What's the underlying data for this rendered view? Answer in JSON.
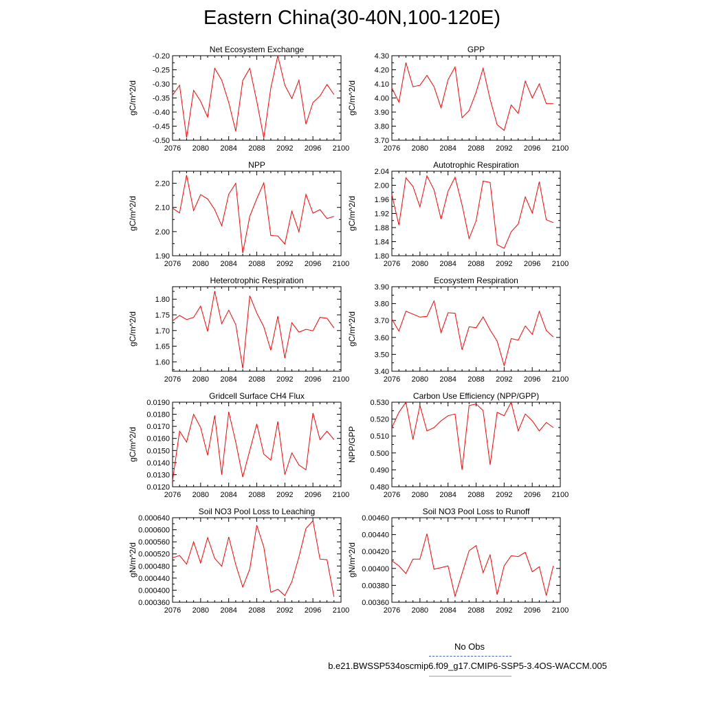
{
  "title": "Eastern China(30-40N,100-120E)",
  "legend": {
    "obs_label": "No Obs",
    "model_label": "b.e21.BWSSP534oscmip6.f09_g17.CMIP6-SSP5-3.4OS-WACCM.005",
    "obs_color": "#4a5ec9",
    "model_color": "#f27b7b"
  },
  "chart_data": [
    {
      "type": "line",
      "title": "Net Ecosystem Exchange",
      "ylabel": "gC/m^2/d",
      "xlim": [
        2076,
        2100
      ],
      "ylim": [
        -0.5,
        -0.2
      ],
      "xticks": [
        "2076",
        "2080",
        "2084",
        "2088",
        "2092",
        "2096",
        "2100"
      ],
      "yticks": [
        "-0.50",
        "-0.45",
        "-0.40",
        "-0.35",
        "-0.30",
        "-0.25",
        "-0.20"
      ],
      "line_color": "#ff0000",
      "x": [
        2076,
        2077,
        2078,
        2079,
        2080,
        2081,
        2082,
        2083,
        2084,
        2085,
        2086,
        2087,
        2088,
        2089,
        2090,
        2091,
        2092,
        2093,
        2094,
        2095,
        2096,
        2097,
        2098,
        2099
      ],
      "values": [
        -0.34,
        -0.305,
        -0.491,
        -0.323,
        -0.362,
        -0.418,
        -0.245,
        -0.287,
        -0.366,
        -0.468,
        -0.288,
        -0.245,
        -0.362,
        -0.492,
        -0.315,
        -0.2,
        -0.305,
        -0.352,
        -0.287,
        -0.443,
        -0.366,
        -0.343,
        -0.302,
        -0.338
      ]
    },
    {
      "type": "line",
      "title": "GPP",
      "ylabel": "gC/m^2/d",
      "xlim": [
        2076,
        2100
      ],
      "ylim": [
        3.7,
        4.3
      ],
      "xticks": [
        "2076",
        "2080",
        "2084",
        "2088",
        "2092",
        "2096",
        "2100"
      ],
      "yticks": [
        "3.70",
        "3.80",
        "3.90",
        "4.00",
        "4.10",
        "4.20",
        "4.30"
      ],
      "line_color": "#ff0000",
      "x": [
        2076,
        2077,
        2078,
        2079,
        2080,
        2081,
        2082,
        2083,
        2084,
        2085,
        2086,
        2087,
        2088,
        2089,
        2090,
        2091,
        2092,
        2093,
        2094,
        2095,
        2096,
        2097,
        2098,
        2099
      ],
      "values": [
        4.07,
        3.97,
        4.25,
        4.08,
        4.09,
        4.16,
        4.08,
        3.93,
        4.13,
        4.22,
        3.86,
        3.91,
        4.04,
        4.21,
        3.99,
        3.81,
        3.77,
        3.95,
        3.89,
        4.12,
        4.0,
        4.1,
        3.96,
        3.96
      ]
    },
    {
      "type": "line",
      "title": "NPP",
      "ylabel": "gC/m^2/d",
      "xlim": [
        2076,
        2100
      ],
      "ylim": [
        1.9,
        2.25
      ],
      "xticks": [
        "2076",
        "2080",
        "2084",
        "2088",
        "2092",
        "2096",
        "2100"
      ],
      "yticks": [
        "1.90",
        "2.00",
        "2.10",
        "2.20"
      ],
      "ytick_values": [
        1.9,
        2.0,
        2.1,
        2.2
      ],
      "line_color": "#ff0000",
      "x": [
        2076,
        2077,
        2078,
        2079,
        2080,
        2081,
        2082,
        2083,
        2084,
        2085,
        2086,
        2087,
        2088,
        2089,
        2090,
        2091,
        2092,
        2093,
        2094,
        2095,
        2096,
        2097,
        2098,
        2099
      ],
      "values": [
        2.097,
        2.077,
        2.234,
        2.087,
        2.153,
        2.135,
        2.091,
        2.024,
        2.155,
        2.2,
        1.911,
        2.063,
        2.136,
        2.202,
        1.984,
        1.982,
        1.948,
        2.084,
        1.999,
        2.154,
        2.076,
        2.091,
        2.054,
        2.063
      ]
    },
    {
      "type": "line",
      "title": "Autotrophic Respiration",
      "ylabel": "gC/m^2/d",
      "xlim": [
        2076,
        2100
      ],
      "ylim": [
        1.8,
        2.04
      ],
      "xticks": [
        "2076",
        "2080",
        "2084",
        "2088",
        "2092",
        "2096",
        "2100"
      ],
      "yticks": [
        "1.80",
        "1.84",
        "1.88",
        "1.92",
        "1.96",
        "2.00",
        "2.04"
      ],
      "line_color": "#ff0000",
      "x": [
        2076,
        2077,
        2078,
        2079,
        2080,
        2081,
        2082,
        2083,
        2084,
        2085,
        2086,
        2087,
        2088,
        2089,
        2090,
        2091,
        2092,
        2093,
        2094,
        2095,
        2096,
        2097,
        2098,
        2099
      ],
      "values": [
        1.973,
        1.887,
        2.021,
        1.997,
        1.939,
        2.027,
        1.987,
        1.904,
        1.983,
        2.023,
        1.944,
        1.849,
        1.899,
        2.012,
        2.008,
        1.831,
        1.821,
        1.868,
        1.89,
        1.967,
        1.921,
        2.01,
        1.902,
        1.894
      ]
    },
    {
      "type": "line",
      "title": "Heterotrophic Respiration",
      "ylabel": "gC/m^2/d",
      "xlim": [
        2076,
        2100
      ],
      "ylim": [
        1.57,
        1.84
      ],
      "xticks": [
        "2076",
        "2080",
        "2084",
        "2088",
        "2092",
        "2096",
        "2100"
      ],
      "yticks": [
        "1.60",
        "1.65",
        "1.70",
        "1.75",
        "1.80"
      ],
      "ytick_values": [
        1.6,
        1.65,
        1.7,
        1.75,
        1.8
      ],
      "line_color": "#ff0000",
      "x": [
        2076,
        2077,
        2078,
        2079,
        2080,
        2081,
        2082,
        2083,
        2084,
        2085,
        2086,
        2087,
        2088,
        2089,
        2090,
        2091,
        2092,
        2093,
        2094,
        2095,
        2096,
        2097,
        2098,
        2099
      ],
      "values": [
        1.731,
        1.748,
        1.735,
        1.742,
        1.778,
        1.697,
        1.826,
        1.722,
        1.765,
        1.719,
        1.579,
        1.811,
        1.756,
        1.712,
        1.637,
        1.746,
        1.612,
        1.725,
        1.695,
        1.704,
        1.699,
        1.742,
        1.739,
        1.708
      ]
    },
    {
      "type": "line",
      "title": "Ecosystem Respiration",
      "ylabel": "gC/m^2/d",
      "xlim": [
        2076,
        2100
      ],
      "ylim": [
        3.4,
        3.9
      ],
      "xticks": [
        "2076",
        "2080",
        "2084",
        "2088",
        "2092",
        "2096",
        "2100"
      ],
      "yticks": [
        "3.40",
        "3.50",
        "3.60",
        "3.70",
        "3.80",
        "3.90"
      ],
      "line_color": "#ff0000",
      "x": [
        2076,
        2077,
        2078,
        2079,
        2080,
        2081,
        2082,
        2083,
        2084,
        2085,
        2086,
        2087,
        2088,
        2089,
        2090,
        2091,
        2092,
        2093,
        2094,
        2095,
        2096,
        2097,
        2098,
        2099
      ],
      "values": [
        3.708,
        3.637,
        3.755,
        3.738,
        3.72,
        3.724,
        3.816,
        3.628,
        3.746,
        3.743,
        3.527,
        3.663,
        3.657,
        3.721,
        3.644,
        3.578,
        3.433,
        3.593,
        3.584,
        3.668,
        3.618,
        3.754,
        3.641,
        3.603
      ]
    },
    {
      "type": "line",
      "title": "Gridcell Surface CH4 Flux",
      "ylabel": "gC/m^2/d",
      "xlim": [
        2076,
        2100
      ],
      "ylim": [
        0.012,
        0.019
      ],
      "xticks": [
        "2076",
        "2080",
        "2084",
        "2088",
        "2092",
        "2096",
        "2100"
      ],
      "yticks": [
        "0.0120",
        "0.0130",
        "0.0140",
        "0.0150",
        "0.0160",
        "0.0170",
        "0.0180",
        "0.0190"
      ],
      "line_color": "#ff0000",
      "x": [
        2076,
        2077,
        2078,
        2079,
        2080,
        2081,
        2082,
        2083,
        2084,
        2085,
        2086,
        2087,
        2088,
        2089,
        2090,
        2091,
        2092,
        2093,
        2094,
        2095,
        2096,
        2097,
        2098,
        2099
      ],
      "values": [
        0.0125,
        0.0166,
        0.0157,
        0.018,
        0.0169,
        0.0146,
        0.0179,
        0.013,
        0.0182,
        0.0157,
        0.0128,
        0.015,
        0.0172,
        0.0147,
        0.0142,
        0.0174,
        0.013,
        0.0148,
        0.0138,
        0.0134,
        0.0181,
        0.0159,
        0.0166,
        0.0159
      ]
    },
    {
      "type": "line",
      "title": "Carbon Use Efficiency (NPP/GPP)",
      "ylabel": "NPP/GPP",
      "xlim": [
        2076,
        2100
      ],
      "ylim": [
        0.48,
        0.53
      ],
      "xticks": [
        "2076",
        "2080",
        "2084",
        "2088",
        "2092",
        "2096",
        "2100"
      ],
      "yticks": [
        "0.480",
        "0.490",
        "0.500",
        "0.510",
        "0.520",
        "0.530"
      ],
      "line_color": "#ff0000",
      "x": [
        2076,
        2077,
        2078,
        2079,
        2080,
        2081,
        2082,
        2083,
        2084,
        2085,
        2086,
        2087,
        2088,
        2089,
        2090,
        2091,
        2092,
        2093,
        2094,
        2095,
        2096,
        2097,
        2098,
        2099
      ],
      "values": [
        0.515,
        0.524,
        0.53,
        0.508,
        0.528,
        0.513,
        0.515,
        0.519,
        0.522,
        0.523,
        0.49,
        0.528,
        0.529,
        0.525,
        0.493,
        0.524,
        0.522,
        0.53,
        0.513,
        0.523,
        0.519,
        0.513,
        0.518,
        0.515
      ]
    },
    {
      "type": "line",
      "title": "Soil NO3 Pool Loss to Leaching",
      "ylabel": "gN/m^2/d",
      "xlim": [
        2076,
        2100
      ],
      "ylim": [
        0.00036,
        0.00064
      ],
      "xticks": [
        "2076",
        "2080",
        "2084",
        "2088",
        "2092",
        "2096",
        "2100"
      ],
      "yticks": [
        "0.000360",
        "0.000400",
        "0.000440",
        "0.000480",
        "0.000520",
        "0.000560",
        "0.000600",
        "0.000640"
      ],
      "ytick_values": [
        0.00036,
        0.0004,
        0.00044,
        0.00048,
        0.00052,
        0.00056,
        0.0006,
        0.00064
      ],
      "line_color": "#ff0000",
      "x": [
        2076,
        2077,
        2078,
        2079,
        2080,
        2081,
        2082,
        2083,
        2084,
        2085,
        2086,
        2087,
        2088,
        2089,
        2090,
        2091,
        2092,
        2093,
        2094,
        2095,
        2096,
        2097,
        2098,
        2099
      ],
      "values": [
        0.000507,
        0.000515,
        0.000486,
        0.00056,
        0.00049,
        0.000574,
        0.000505,
        0.000479,
        0.000576,
        0.000485,
        0.00041,
        0.00047,
        0.000615,
        0.000543,
        0.000393,
        0.000403,
        0.000382,
        0.000428,
        0.00051,
        0.000604,
        0.00063,
        0.000503,
        0.000501,
        0.000378
      ]
    },
    {
      "type": "line",
      "title": "Soil NO3 Pool Loss to Runoff",
      "ylabel": "gN/m^2/d",
      "xlim": [
        2076,
        2100
      ],
      "ylim": [
        0.0036,
        0.0046
      ],
      "xticks": [
        "2076",
        "2080",
        "2084",
        "2088",
        "2092",
        "2096",
        "2100"
      ],
      "yticks": [
        "0.00360",
        "0.00380",
        "0.00400",
        "0.00420",
        "0.00440",
        "0.00460"
      ],
      "line_color": "#ff0000",
      "x": [
        2076,
        2077,
        2078,
        2079,
        2080,
        2081,
        2082,
        2083,
        2084,
        2085,
        2086,
        2087,
        2088,
        2089,
        2090,
        2091,
        2092,
        2093,
        2094,
        2095,
        2096,
        2097,
        2098,
        2099
      ],
      "values": [
        0.00409,
        0.00403,
        0.00394,
        0.00411,
        0.00411,
        0.00441,
        0.00399,
        0.00401,
        0.00403,
        0.00367,
        0.00394,
        0.00421,
        0.00427,
        0.00395,
        0.00416,
        0.00369,
        0.00403,
        0.00415,
        0.00414,
        0.00419,
        0.00396,
        0.00402,
        0.00368,
        0.00403
      ]
    }
  ]
}
